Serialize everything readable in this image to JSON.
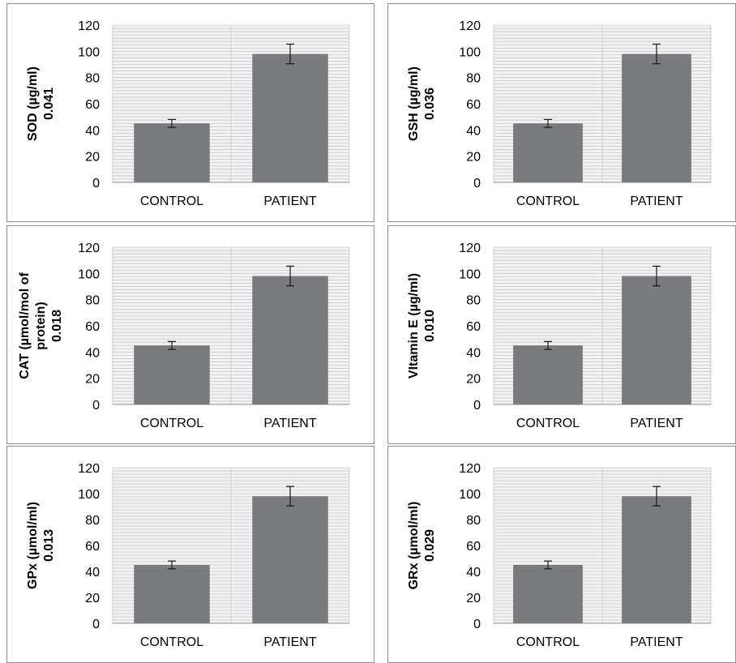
{
  "chart_data": [
    {
      "type": "bar",
      "categories": [
        "CONTROL",
        "PATIENT"
      ],
      "values": [
        45,
        98
      ],
      "error": [
        3,
        7.5
      ],
      "ylabel_lines": [
        "SOD (µg/ml)",
        "0.041"
      ],
      "ylim": [
        0,
        120
      ],
      "yticks": [
        "0",
        "20",
        "40",
        "60",
        "80",
        "100",
        "120"
      ],
      "grid": true,
      "bar_color": "#7a7b7e"
    },
    {
      "type": "bar",
      "categories": [
        "CONTROL",
        "PATIENT"
      ],
      "values": [
        45,
        98
      ],
      "error": [
        3,
        7.5
      ],
      "ylabel_lines": [
        "GSH (µg/ml)",
        "0.036"
      ],
      "ylim": [
        0,
        120
      ],
      "yticks": [
        "0",
        "20",
        "40",
        "60",
        "80",
        "100",
        "120"
      ],
      "grid": true,
      "bar_color": "#7a7b7e"
    },
    {
      "type": "bar",
      "categories": [
        "CONTROL",
        "PATIENT"
      ],
      "values": [
        45,
        98
      ],
      "error": [
        3,
        7.5
      ],
      "ylabel_lines": [
        "CAT (µmol/mol of",
        "protein)",
        "0.018"
      ],
      "ylim": [
        0,
        120
      ],
      "yticks": [
        "0",
        "20",
        "40",
        "60",
        "80",
        "100",
        "120"
      ],
      "grid": true,
      "bar_color": "#7a7b7e"
    },
    {
      "type": "bar",
      "categories": [
        "CONTROL",
        "PATIENT"
      ],
      "values": [
        45,
        98
      ],
      "error": [
        3,
        7.5
      ],
      "ylabel_lines": [
        "VItamin E (µg/ml)",
        "0.010"
      ],
      "ylim": [
        0,
        120
      ],
      "yticks": [
        "0",
        "20",
        "40",
        "60",
        "80",
        "100",
        "120"
      ],
      "grid": true,
      "bar_color": "#7a7b7e"
    },
    {
      "type": "bar",
      "categories": [
        "CONTROL",
        "PATIENT"
      ],
      "values": [
        45,
        98
      ],
      "error": [
        3,
        7.5
      ],
      "ylabel_lines": [
        "GPx (µmol/ml)",
        "0.013"
      ],
      "ylim": [
        0,
        120
      ],
      "yticks": [
        "0",
        "20",
        "40",
        "60",
        "80",
        "100",
        "120"
      ],
      "grid": true,
      "bar_color": "#7a7b7e"
    },
    {
      "type": "bar",
      "categories": [
        "CONTROL",
        "PATIENT"
      ],
      "values": [
        45,
        98
      ],
      "error": [
        3,
        7.5
      ],
      "ylabel_lines": [
        "GRx (µmol/ml)",
        "0.029"
      ],
      "ylim": [
        0,
        120
      ],
      "yticks": [
        "0",
        "20",
        "40",
        "60",
        "80",
        "100",
        "120"
      ],
      "grid": true,
      "bar_color": "#7a7b7e"
    }
  ]
}
